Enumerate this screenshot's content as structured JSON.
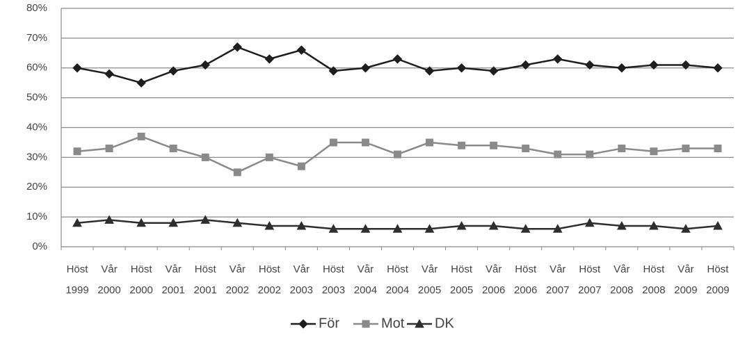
{
  "chart_data": {
    "type": "line",
    "categories": [
      "Höst 1999",
      "Vår 2000",
      "Höst 2000",
      "Vår 2001",
      "Höst 2001",
      "Vår 2002",
      "Höst 2002",
      "Vår 2003",
      "Höst 2003",
      "Vår 2004",
      "Höst 2004",
      "Vår 2005",
      "Höst 2005",
      "Vår 2006",
      "Höst 2006",
      "Vår 2007",
      "Höst 2007",
      "Vår 2008",
      "Höst 2008",
      "Vår 2009",
      "Höst 2009"
    ],
    "series": [
      {
        "name": "För",
        "color": "#1e1e1e",
        "marker": "diamond",
        "values": [
          60,
          58,
          55,
          59,
          61,
          67,
          63,
          66,
          59,
          60,
          63,
          59,
          60,
          59,
          61,
          63,
          61,
          60,
          61,
          61,
          60
        ]
      },
      {
        "name": "Mot",
        "color": "#8a8a8a",
        "marker": "square",
        "values": [
          32,
          33,
          37,
          33,
          30,
          25,
          30,
          27,
          35,
          35,
          31,
          35,
          34,
          34,
          33,
          31,
          31,
          33,
          32,
          33,
          33
        ]
      },
      {
        "name": "DK",
        "color": "#2e2e2e",
        "marker": "triangle",
        "values": [
          8,
          9,
          8,
          8,
          9,
          8,
          7,
          7,
          6,
          6,
          6,
          6,
          7,
          7,
          6,
          6,
          8,
          7,
          7,
          6,
          7
        ]
      }
    ],
    "ylim": [
      0,
      80
    ],
    "yticks": [
      {
        "value": 0,
        "label": "0%"
      },
      {
        "value": 10,
        "label": "10%"
      },
      {
        "value": 20,
        "label": "20%"
      },
      {
        "value": 30,
        "label": "30%"
      },
      {
        "value": 40,
        "label": "40%"
      },
      {
        "value": 50,
        "label": "50%"
      },
      {
        "value": 60,
        "label": "60%"
      },
      {
        "value": 70,
        "label": "70%"
      },
      {
        "value": 80,
        "label": "80%"
      }
    ],
    "grid": true,
    "legend": "bottom"
  }
}
